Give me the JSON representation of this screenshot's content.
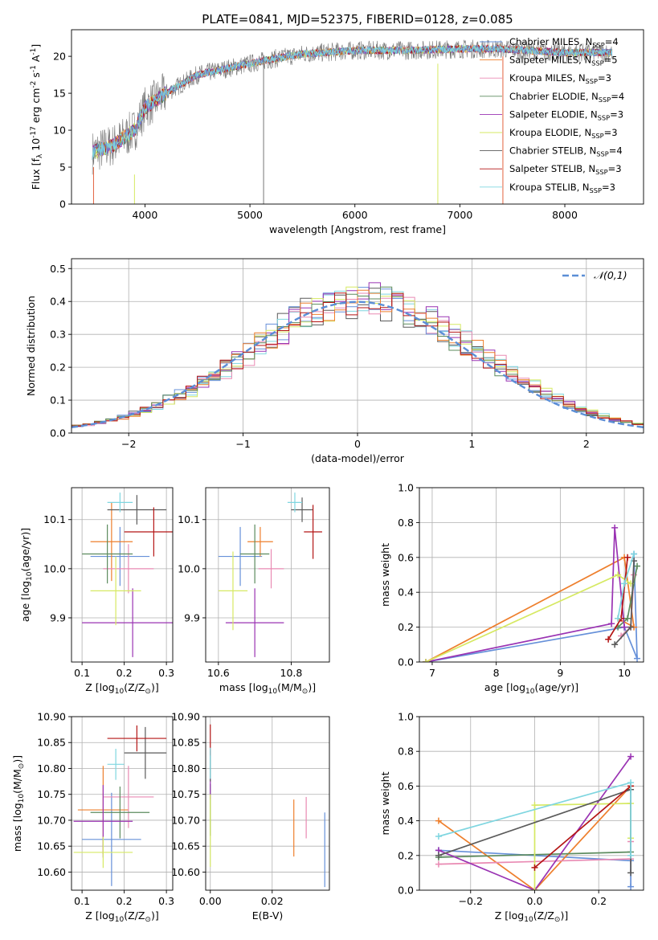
{
  "colors": {
    "palette": [
      "#6690d9",
      "#ee7f2d",
      "#e98ab3",
      "#5c8b5e",
      "#9a33b3",
      "#d6e963",
      "#5a5a5a",
      "#b41515",
      "#7fd6e0"
    ]
  },
  "chart_data": [
    {
      "id": "spectrum",
      "type": "line",
      "title": "PLATE=0841, MJD=52375, FIBERID=0128, z=0.085",
      "xlabel": "wavelength [Angstrom, rest frame]",
      "ylabel": "Flux [f$_\\lambda$ 10$^{-17}$ erg cm$^{-2}$ s$^{-1}$ A$^{-1}$]",
      "xlim": [
        3300,
        8750
      ],
      "ylim": [
        0,
        23.6
      ],
      "xticks": [
        4000,
        5000,
        6000,
        7000,
        8000
      ],
      "yticks": [
        0,
        5,
        10,
        15,
        20
      ],
      "grid": false,
      "legend_position": "bottom-right",
      "legend": [
        "Chabrier MILES, N$_{SSP}$=4",
        "Salpeter MILES, N$_{SSP}$=5",
        "Kroupa MILES, N$_{SSP}$=3",
        "Chabrier ELODIE, N$_{SSP}$=4",
        "Salpeter ELODIE, N$_{SSP}$=3",
        "Kroupa ELODIE, N$_{SSP}$=3",
        "Chabrier STELIB, N$_{SSP}$=4",
        "Salpeter STELIB, N$_{SSP}$=3",
        "Kroupa STELIB, N$_{SSP}$=3"
      ],
      "continuum_knots": {
        "x": [
          3500,
          3700,
          3900,
          4000,
          4200,
          4500,
          5000,
          5200,
          5500,
          6000,
          6500,
          7000,
          7400,
          8000,
          8450
        ],
        "y": [
          7,
          8,
          10,
          13,
          15,
          17.5,
          19,
          19.6,
          20.3,
          20.8,
          20.8,
          21,
          21,
          20.5,
          20.5
        ]
      }
    },
    {
      "id": "residuals",
      "type": "histogram",
      "xlabel": "(data-model)/error",
      "ylabel": "Normed distribution",
      "xlim": [
        -2.5,
        2.5
      ],
      "ylim": [
        0,
        0.53
      ],
      "xticks": [
        -2,
        -1,
        0,
        1,
        2
      ],
      "yticks": [
        0.0,
        0.1,
        0.2,
        0.3,
        0.4,
        0.5
      ],
      "grid": true,
      "legend_position": "top-right",
      "legend": [
        "$\\mathcal{N}(0,1)$"
      ],
      "bin_width": 0.1
    },
    {
      "id": "age_vs_Z",
      "type": "errorbar",
      "xlabel": "Z [log$_{10}$(Z/Z$_\\odot$)]",
      "ylabel": "age  [log$_{10}$(age/yr)]",
      "xlim": [
        0.075,
        0.315
      ],
      "ylim": [
        9.81,
        10.165
      ],
      "xticks": [
        0.1,
        0.2,
        0.3
      ],
      "yticks": [
        9.9,
        10.0,
        10.1
      ],
      "grid": true,
      "points": [
        {
          "x": 0.19,
          "y": 10.025,
          "xerr": 0.07,
          "yerr": 0.06
        },
        {
          "x": 0.17,
          "y": 10.055,
          "xerr": 0.05,
          "yerr": 0.08
        },
        {
          "x": 0.21,
          "y": 10.0,
          "xerr": 0.06,
          "yerr": 0.05
        },
        {
          "x": 0.16,
          "y": 10.03,
          "xerr": 0.06,
          "yerr": 0.06
        },
        {
          "x": 0.22,
          "y": 9.89,
          "xerr": 0.12,
          "yerr": 0.07
        },
        {
          "x": 0.18,
          "y": 9.955,
          "xerr": 0.06,
          "yerr": 0.07
        },
        {
          "x": 0.23,
          "y": 10.12,
          "xerr": 0.07,
          "yerr": 0.03
        },
        {
          "x": 0.27,
          "y": 10.075,
          "xerr": 0.07,
          "yerr": 0.05
        },
        {
          "x": 0.19,
          "y": 10.135,
          "xerr": 0.03,
          "yerr": 0.02
        }
      ]
    },
    {
      "id": "age_vs_mass",
      "type": "errorbar",
      "xlabel": "mass [log$_{10}$(M/M$_\\odot$)]",
      "ylabel": "",
      "xlim": [
        10.565,
        10.905
      ],
      "ylim": [
        9.81,
        10.165
      ],
      "xticks": [
        10.6,
        10.8
      ],
      "yticks": [
        9.9,
        10.0,
        10.1
      ],
      "grid": true,
      "points": [
        {
          "x": 10.66,
          "y": 10.025,
          "xerr": 0.06,
          "yerr": 0.06
        },
        {
          "x": 10.715,
          "y": 10.055,
          "xerr": 0.035,
          "yerr": 0.03
        },
        {
          "x": 10.745,
          "y": 10.0,
          "xerr": 0.035,
          "yerr": 0.04
        },
        {
          "x": 10.7,
          "y": 10.03,
          "xerr": 0.04,
          "yerr": 0.06
        },
        {
          "x": 10.7,
          "y": 9.89,
          "xerr": 0.08,
          "yerr": 0.07
        },
        {
          "x": 10.64,
          "y": 9.955,
          "xerr": 0.04,
          "yerr": 0.08
        },
        {
          "x": 10.83,
          "y": 10.12,
          "xerr": 0.03,
          "yerr": 0.025
        },
        {
          "x": 10.86,
          "y": 10.075,
          "xerr": 0.025,
          "yerr": 0.055
        },
        {
          "x": 10.81,
          "y": 10.135,
          "xerr": 0.02,
          "yerr": 0.02
        }
      ]
    },
    {
      "id": "weight_vs_age",
      "type": "line",
      "xlabel": "age  [log$_{10}$(age/yr)]",
      "ylabel": "mass weight",
      "xlim": [
        6.8,
        10.3
      ],
      "ylim": [
        0,
        1
      ],
      "xticks": [
        7,
        8,
        9,
        10
      ],
      "yticks": [
        0.0,
        0.2,
        0.4,
        0.6,
        0.8,
        1.0
      ],
      "grid": true,
      "series": [
        {
          "x": [
            6.9,
            10.0,
            10.2,
            10.15
          ],
          "y": [
            0.0,
            0.2,
            0.02,
            0.62
          ]
        },
        {
          "x": [
            6.9,
            10.0,
            10.15,
            9.9
          ],
          "y": [
            0.0,
            0.6,
            0.2,
            0.25
          ]
        },
        {
          "x": [
            9.95,
            10.1,
            10.15
          ],
          "y": [
            0.15,
            0.2,
            0.5
          ]
        },
        {
          "x": [
            9.9,
            10.05,
            10.2
          ],
          "y": [
            0.2,
            0.25,
            0.55
          ]
        },
        {
          "x": [
            6.9,
            9.8,
            9.85,
            10.0
          ],
          "y": [
            0.0,
            0.22,
            0.77,
            0.2
          ]
        },
        {
          "x": [
            6.9,
            9.9,
            10.1
          ],
          "y": [
            0.0,
            0.5,
            0.45
          ]
        },
        {
          "x": [
            9.85,
            10.1,
            10.15
          ],
          "y": [
            0.1,
            0.2,
            0.58
          ]
        },
        {
          "x": [
            9.75,
            9.95,
            10.05
          ],
          "y": [
            0.13,
            0.25,
            0.6
          ]
        },
        {
          "x": [
            9.9,
            10.0,
            10.15
          ],
          "y": [
            0.25,
            0.45,
            0.62
          ]
        }
      ]
    },
    {
      "id": "mass_vs_Z",
      "type": "errorbar",
      "xlabel": "Z [log$_{10}$(Z/Z$_\\odot$)]",
      "ylabel": "mass [log$_{10}$(M/M$_\\odot$)]",
      "xlim": [
        0.075,
        0.315
      ],
      "ylim": [
        10.565,
        10.9
      ],
      "xticks": [
        0.1,
        0.2,
        0.3
      ],
      "yticks": [
        10.6,
        10.65,
        10.7,
        10.75,
        10.8,
        10.85,
        10.9
      ],
      "grid": true,
      "points": [
        {
          "x": 0.17,
          "y": 10.663,
          "xerr": 0.07,
          "yerr": 0.09
        },
        {
          "x": 0.15,
          "y": 10.72,
          "xerr": 0.06,
          "yerr": 0.085
        },
        {
          "x": 0.21,
          "y": 10.745,
          "xerr": 0.06,
          "yerr": 0.06
        },
        {
          "x": 0.19,
          "y": 10.715,
          "xerr": 0.07,
          "yerr": 0.05
        },
        {
          "x": 0.15,
          "y": 10.698,
          "xerr": 0.07,
          "yerr": 0.07
        },
        {
          "x": 0.15,
          "y": 10.638,
          "xerr": 0.07,
          "yerr": 0.03
        },
        {
          "x": 0.25,
          "y": 10.83,
          "xerr": 0.05,
          "yerr": 0.05
        },
        {
          "x": 0.23,
          "y": 10.858,
          "xerr": 0.07,
          "yerr": 0.025
        },
        {
          "x": 0.18,
          "y": 10.808,
          "xerr": 0.02,
          "yerr": 0.03
        }
      ]
    },
    {
      "id": "mass_vs_EBV",
      "type": "errorbar",
      "xlabel": "E(B-V)",
      "ylabel": "",
      "xlim": [
        -0.0015,
        0.0385
      ],
      "ylim": [
        10.565,
        10.9
      ],
      "xticks": [
        0.0,
        0.02
      ],
      "yticks": [
        10.6,
        10.65,
        10.7,
        10.75,
        10.8,
        10.85,
        10.9
      ],
      "grid": true,
      "points": [
        {
          "x": 0.037,
          "y": 10.643,
          "xerr": 0,
          "yerr": 0.072
        },
        {
          "x": 0.027,
          "y": 10.685,
          "xerr": 0,
          "yerr": 0.055
        },
        {
          "x": 0.031,
          "y": 10.705,
          "xerr": 0,
          "yerr": 0.04
        },
        {
          "x": 0.0,
          "y": 10.72,
          "xerr": 0,
          "yerr": 0.05
        },
        {
          "x": 0.0,
          "y": 10.76,
          "xerr": 0,
          "yerr": 0.02
        },
        {
          "x": 0.0,
          "y": 10.68,
          "xerr": 0,
          "yerr": 0.07
        },
        {
          "x": 0.0,
          "y": 10.805,
          "xerr": 0,
          "yerr": 0.03
        },
        {
          "x": 0.0,
          "y": 10.855,
          "xerr": 0,
          "yerr": 0.03
        },
        {
          "x": 0.0,
          "y": 10.81,
          "xerr": 0,
          "yerr": 0.03
        }
      ]
    },
    {
      "id": "weight_vs_Z",
      "type": "line",
      "xlabel": "Z [log$_{10}$(Z/Z$_\\odot$)]",
      "ylabel": "mass weight",
      "xlim": [
        -0.36,
        0.34
      ],
      "ylim": [
        0,
        1
      ],
      "xticks": [
        -0.2,
        0.0,
        0.2
      ],
      "yticks": [
        0.0,
        0.2,
        0.4,
        0.6,
        0.8,
        1.0
      ],
      "grid": true,
      "series": [
        {
          "x": [
            -0.3,
            0.0,
            0.3,
            0.3
          ],
          "y": [
            0.23,
            0.2,
            0.17,
            0.02
          ]
        },
        {
          "x": [
            -0.3,
            0.0,
            0.3
          ],
          "y": [
            0.4,
            0.0,
            0.6
          ]
        },
        {
          "x": [
            -0.3,
            0.3,
            0.3
          ],
          "y": [
            0.15,
            0.18,
            0.28
          ]
        },
        {
          "x": [
            -0.3,
            0.3
          ],
          "y": [
            0.19,
            0.22
          ]
        },
        {
          "x": [
            -0.3,
            0.0,
            0.3
          ],
          "y": [
            0.23,
            0.0,
            0.77
          ]
        },
        {
          "x": [
            0.0,
            0.0,
            0.3,
            0.3
          ],
          "y": [
            0.0,
            0.49,
            0.5,
            0.3
          ]
        },
        {
          "x": [
            -0.3,
            0.3,
            0.3
          ],
          "y": [
            0.2,
            0.58,
            0.1
          ]
        },
        {
          "x": [
            0.0,
            0.3
          ],
          "y": [
            0.13,
            0.6
          ]
        },
        {
          "x": [
            -0.3,
            0.3,
            0.3
          ],
          "y": [
            0.31,
            0.62,
            0.2
          ]
        }
      ]
    }
  ]
}
